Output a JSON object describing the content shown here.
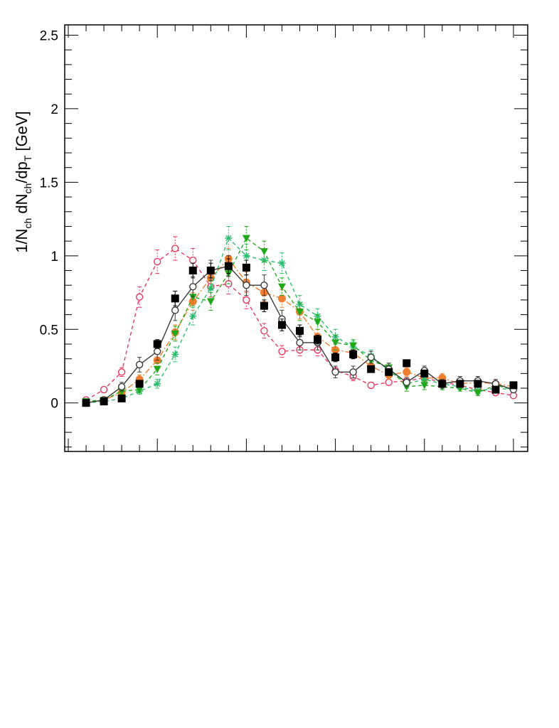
{
  "chart_data": {
    "type": "scatter",
    "title": "",
    "xlabel": "",
    "ylabel": {
      "parts": [
        "1/N",
        "ch",
        " dN",
        "ch",
        "/dp",
        "T",
        " [GeV]"
      ]
    },
    "ylim": [
      -0.33,
      2.57
    ],
    "xlim": [
      -0.1,
      12.9
    ],
    "y_ticks": [
      {
        "value": 0,
        "label": "0"
      },
      {
        "value": 0.5,
        "label": "0.5"
      },
      {
        "value": 1,
        "label": "1"
      },
      {
        "value": 1.5,
        "label": "1.5"
      },
      {
        "value": 2,
        "label": "2"
      },
      {
        "value": 2.5,
        "label": "2.5"
      }
    ],
    "x_major_ticks": [
      0,
      2.5,
      5,
      7.5,
      10,
      12.5
    ],
    "x_minor_step": 0.5,
    "y_minor_step": 0.1,
    "legend": "none",
    "grid": false,
    "series": [
      {
        "color": "#e8375f",
        "line": "dashed",
        "marker": "open-circle",
        "x": [
          0.5,
          1,
          1.5,
          2,
          2.5,
          3,
          3.5,
          4,
          4.5,
          5,
          5.5,
          6,
          6.5,
          7,
          7.5,
          8,
          8.5,
          9,
          9.5,
          10,
          10.5,
          11,
          11.5,
          12,
          12.5
        ],
        "y": [
          0.02,
          0.09,
          0.21,
          0.72,
          0.96,
          1.05,
          0.97,
          0.79,
          0.81,
          0.7,
          0.49,
          0.35,
          0.36,
          0.36,
          0.22,
          0.18,
          0.12,
          0.14,
          0.15,
          0.17,
          0.14,
          0.12,
          0.09,
          0.07,
          0.05
        ],
        "err": [
          0.01,
          0.02,
          0.03,
          0.07,
          0.08,
          0.08,
          0.08,
          0.07,
          0.07,
          0.06,
          0.05,
          0.04,
          0.04,
          0.04,
          0.03,
          0.03,
          0.02,
          0.02,
          0.02,
          0.02,
          0.02,
          0.02,
          0.02,
          0.02,
          0.01
        ]
      },
      {
        "color": "#ef7f2f",
        "line": "dashdot",
        "marker": "filled-circle",
        "x": [
          0.5,
          1,
          1.5,
          2,
          2.5,
          3,
          3.5,
          4,
          4.5,
          5,
          5.5,
          6,
          6.5,
          7,
          7.5,
          8,
          8.5,
          9,
          9.5,
          10,
          10.5,
          11,
          11.5,
          12,
          12.5
        ],
        "y": [
          0.0,
          0.02,
          0.07,
          0.16,
          0.29,
          0.48,
          0.69,
          0.85,
          0.98,
          0.82,
          0.75,
          0.71,
          0.62,
          0.45,
          0.36,
          0.34,
          0.25,
          0.19,
          0.21,
          0.17,
          0.17,
          0.13,
          0.14,
          0.13,
          0.11
        ],
        "err": [
          0.01,
          0.01,
          0.02,
          0.03,
          0.04,
          0.05,
          0.06,
          0.07,
          0.07,
          0.07,
          0.06,
          0.06,
          0.05,
          0.05,
          0.04,
          0.04,
          0.03,
          0.03,
          0.03,
          0.03,
          0.03,
          0.02,
          0.02,
          0.02,
          0.02
        ]
      },
      {
        "color": "#2bbd6f",
        "line": "dashed",
        "marker": "star",
        "x": [
          0.5,
          1,
          1.5,
          2,
          2.5,
          3,
          3.5,
          4,
          4.5,
          5,
          5.5,
          6,
          6.5,
          7,
          7.5,
          8,
          8.5,
          9,
          9.5,
          10,
          10.5,
          11,
          11.5,
          12,
          12.5
        ],
        "y": [
          0.0,
          0.01,
          0.03,
          0.08,
          0.13,
          0.33,
          0.59,
          0.78,
          1.12,
          1.0,
          0.97,
          0.95,
          0.67,
          0.59,
          0.45,
          0.38,
          0.32,
          0.22,
          0.13,
          0.16,
          0.13,
          0.11,
          0.08,
          0.1,
          0.09
        ],
        "err": [
          0.01,
          0.01,
          0.01,
          0.02,
          0.03,
          0.05,
          0.06,
          0.07,
          0.08,
          0.08,
          0.07,
          0.07,
          0.06,
          0.05,
          0.05,
          0.04,
          0.04,
          0.03,
          0.03,
          0.03,
          0.02,
          0.02,
          0.02,
          0.02,
          0.02
        ]
      },
      {
        "color": "#22a81b",
        "line": "dashed",
        "marker": "filled-triangle-down",
        "x": [
          0.5,
          1,
          1.5,
          2,
          2.5,
          3,
          3.5,
          4,
          4.5,
          5,
          5.5,
          6,
          6.5,
          7,
          7.5,
          8,
          8.5,
          9,
          9.5,
          10,
          10.5,
          11,
          11.5,
          12,
          12.5
        ],
        "y": [
          0.01,
          0.02,
          0.08,
          0.09,
          0.23,
          0.47,
          0.72,
          0.69,
          0.88,
          1.12,
          1.03,
          0.79,
          0.62,
          0.55,
          0.41,
          0.39,
          0.29,
          0.24,
          0.11,
          0.12,
          0.11,
          0.1,
          0.07,
          0.12,
          0.09
        ],
        "err": [
          0.01,
          0.01,
          0.02,
          0.02,
          0.04,
          0.05,
          0.06,
          0.06,
          0.07,
          0.08,
          0.07,
          0.06,
          0.06,
          0.05,
          0.05,
          0.04,
          0.04,
          0.03,
          0.03,
          0.03,
          0.02,
          0.02,
          0.02,
          0.02,
          0.02
        ]
      },
      {
        "color": "#3a3a3a",
        "line": "solid",
        "marker": "open-circle",
        "x": [
          0.5,
          1,
          1.5,
          2,
          2.5,
          3,
          3.5,
          4,
          4.5,
          5,
          5.5,
          6,
          6.5,
          7,
          7.5,
          8,
          8.5,
          9,
          9.5,
          10,
          10.5,
          11,
          11.5,
          12,
          12.5
        ],
        "y": [
          0.0,
          0.02,
          0.11,
          0.26,
          0.35,
          0.63,
          0.79,
          0.9,
          0.93,
          0.8,
          0.8,
          0.57,
          0.41,
          0.41,
          0.21,
          0.21,
          0.31,
          0.23,
          0.14,
          0.22,
          0.13,
          0.15,
          0.15,
          0.13,
          0.09
        ],
        "err": [
          0.01,
          0.02,
          0.03,
          0.05,
          0.06,
          0.07,
          0.07,
          0.07,
          0.07,
          0.07,
          0.07,
          0.06,
          0.05,
          0.05,
          0.04,
          0.04,
          0.04,
          0.04,
          0.03,
          0.03,
          0.03,
          0.03,
          0.03,
          0.03,
          0.02
        ]
      },
      {
        "color": "#000000",
        "line": "none",
        "marker": "filled-square",
        "x": [
          0.5,
          1,
          1.5,
          2,
          2.5,
          3,
          3.5,
          4,
          4.5,
          5,
          5.5,
          6,
          6.5,
          7,
          7.5,
          8,
          8.5,
          9,
          9.5,
          10,
          10.5,
          11,
          11.5,
          12,
          12.5
        ],
        "y": [
          0.0,
          0.01,
          0.03,
          0.13,
          0.4,
          0.71,
          0.9,
          0.9,
          0.93,
          0.92,
          0.66,
          0.53,
          0.49,
          0.43,
          0.31,
          0.33,
          0.23,
          0.21,
          0.27,
          0.2,
          0.13,
          0.13,
          0.13,
          0.09,
          0.12
        ],
        "err": [
          0.01,
          0.01,
          0.01,
          0.02,
          0.03,
          0.05,
          0.05,
          0.05,
          0.05,
          0.05,
          0.04,
          0.04,
          0.04,
          0.03,
          0.03,
          0.03,
          0.02,
          0.02,
          0.02,
          0.02,
          0.02,
          0.02,
          0.02,
          0.02,
          0.02
        ]
      }
    ]
  }
}
